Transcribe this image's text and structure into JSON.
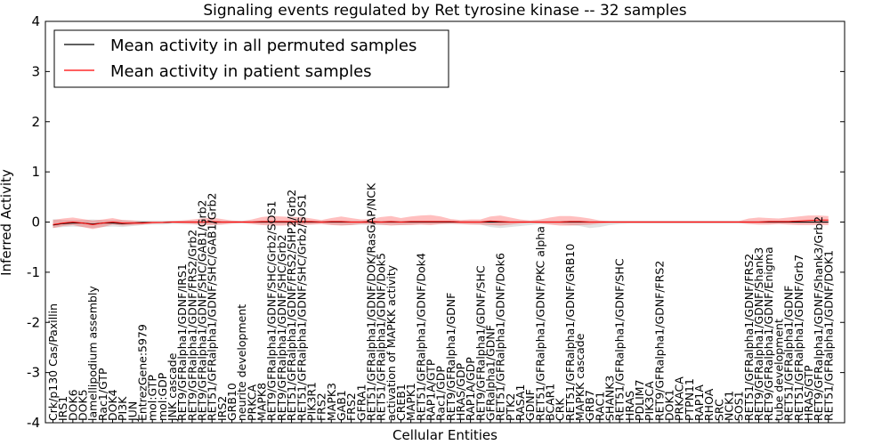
{
  "chart_data": {
    "type": "line",
    "title": "Signaling events regulated by Ret tyrosine kinase -- 32 samples",
    "xlabel": "Cellular Entities",
    "ylabel": "Inferred Activity",
    "ylim": [
      -4,
      4
    ],
    "yticks": [
      -4,
      -3,
      -2,
      -1,
      0,
      1,
      2,
      3,
      4
    ],
    "legend_position": "top-left",
    "categories": [
      "Crk/p130 Cas/Paxillin",
      "IRS1",
      "DOK6",
      "DOK5",
      "lamellipodium assembly",
      "Rac1/GTP",
      "DOK4",
      "PI3K",
      "JUN",
      "EntrezGene:5979",
      "mol:GTP",
      "mol:GDP",
      "JNK cascade",
      "RET9/GFRalpha1/GDNF/IRS1",
      "RET9/GFRalpha1/GDNF/FRS2/Grb2",
      "RET9/GFRalpha1/GDNF/SHC/GAB1/Grb2",
      "RET51/GFRalpha1/GDNF/SHC/GAB1/Grb2",
      "IRS2",
      "GRB10",
      "neurite development",
      "PRKCA",
      "MAPK8",
      "RET9/GFRalpha1/GDNF/SHC/Grb2/SOS1",
      "RET9/GFRalpha1/GDNF/SHC/Grb2",
      "RET51/GFRalpha1/GDNF/FRS2/SHP2/Grb2",
      "RET51/GFRalpha1/GDNF/SHC/Grb2/SOS1",
      "PIK3R1",
      "FRS2",
      "MAPK3",
      "GAB1",
      "FRS2",
      "GFRA1",
      "RET51/GFRalpha1/GDNF/DOK/RasGAP/NCK",
      "RET51/GFRalpha1/GDNF/Dok5",
      "activation of MAPKK activity",
      "CREB1",
      "MAPK1",
      "RET51/GFRalpha1/GDNF/Dok4",
      "RAP1A/GTP",
      "Rac1/GDP",
      "RET9/GFRalpha1/GDNF",
      "HRAS/GDP",
      "RAP1A/GDP",
      "RET9/GFRalpha1/GDNF/SHC",
      "GFRalpha1/GDNF",
      "RET51/GFRalpha1/GDNF/Dok6",
      "PTK2",
      "RASA1",
      "GDNF",
      "RET51/GFRalpha1/GDNF/PKC alpha",
      "BCAR1",
      "CRK",
      "RET51/GFRalpha1/GDNF/GRB10",
      "MAPKK cascade",
      "GRB7",
      "RAC1",
      "SHANK3",
      "RET51/GFRalpha1/GDNF/SHC",
      "HRAS",
      "PDLIM7",
      "PIK3CA",
      "RET9/GFRalpha1/GDNF/FRS2",
      "DOK1",
      "PRKACA",
      "PTPN11",
      "RAP1A",
      "RHOA",
      "SRC",
      "NCK1",
      "SOS1",
      "RET51/GFRalpha1/GDNF/FRS2",
      "RET9/GFRalpha1/GDNF/Shank3",
      "RET9/GFRalpha1/GDNF/Enigma",
      "tube development",
      "RET51/GFRalpha1/GDNF",
      "RET51/GFRalpha1/GDNF/Grb7",
      "HRAS/GTP",
      "RET9/GFRalpha1/GDNF/Shank3/Grb2",
      "RET51/GFRalpha1/GDNF/DOK1"
    ],
    "series": [
      {
        "name": "Mean activity in all permuted samples",
        "color": "#000000",
        "values": [
          -0.06,
          -0.03,
          -0.02,
          -0.02,
          -0.04,
          -0.02,
          -0.02,
          -0.03,
          -0.02,
          -0.01,
          -0.01,
          -0.01,
          0.0,
          0.0,
          0.0,
          0.0,
          0.0,
          0.0,
          0.0,
          0.0,
          0.0,
          0.0,
          0.0,
          0.0,
          0.0,
          0.0,
          0.0,
          0.0,
          0.0,
          0.0,
          0.0,
          0.0,
          0.0,
          0.0,
          0.0,
          0.0,
          0.0,
          0.0,
          0.0,
          0.0,
          0.0,
          0.0,
          0.0,
          0.0,
          0.0,
          0.0,
          0.0,
          0.0,
          0.0,
          0.0,
          0.0,
          0.0,
          0.0,
          0.0,
          0.0,
          0.0,
          0.0,
          0.0,
          0.0,
          0.0,
          0.0,
          0.0,
          0.0,
          0.0,
          0.0,
          0.0,
          0.0,
          0.0,
          0.0,
          0.0,
          0.0,
          0.0,
          0.0,
          0.0,
          0.0,
          0.0,
          0.0,
          0.0,
          0.0
        ],
        "band_lower": [
          -0.12,
          -0.1,
          -0.09,
          -0.1,
          -0.12,
          -0.1,
          -0.09,
          -0.1,
          -0.08,
          -0.06,
          -0.05,
          -0.05,
          -0.04,
          -0.04,
          -0.04,
          -0.04,
          -0.05,
          -0.04,
          -0.03,
          -0.03,
          -0.03,
          -0.04,
          -0.04,
          -0.04,
          -0.04,
          -0.04,
          -0.04,
          -0.03,
          -0.05,
          -0.06,
          -0.06,
          -0.05,
          -0.06,
          -0.06,
          -0.05,
          -0.06,
          -0.05,
          -0.04,
          -0.04,
          -0.04,
          -0.04,
          -0.04,
          -0.04,
          -0.05,
          -0.1,
          -0.12,
          -0.1,
          -0.08,
          -0.06,
          -0.04,
          -0.04,
          -0.04,
          -0.06,
          -0.08,
          -0.12,
          -0.1,
          -0.06,
          -0.04,
          -0.03,
          -0.03,
          -0.03,
          -0.03,
          -0.03,
          -0.03,
          -0.03,
          -0.03,
          -0.03,
          -0.03,
          -0.03,
          -0.03,
          -0.03,
          -0.03,
          -0.03,
          -0.03,
          -0.03,
          -0.03,
          -0.03,
          -0.03,
          -0.03
        ],
        "band_upper": [
          0.06,
          0.04,
          0.04,
          0.04,
          0.05,
          0.04,
          0.04,
          0.04,
          0.03,
          0.03,
          0.03,
          0.03,
          0.03,
          0.03,
          0.03,
          0.03,
          0.03,
          0.03,
          0.03,
          0.03,
          0.03,
          0.03,
          0.03,
          0.03,
          0.03,
          0.03,
          0.03,
          0.03,
          0.03,
          0.03,
          0.03,
          0.03,
          0.03,
          0.03,
          0.03,
          0.03,
          0.03,
          0.03,
          0.03,
          0.03,
          0.03,
          0.03,
          0.03,
          0.03,
          0.03,
          0.03,
          0.03,
          0.03,
          0.03,
          0.03,
          0.03,
          0.03,
          0.03,
          0.03,
          0.03,
          0.03,
          0.03,
          0.03,
          0.03,
          0.03,
          0.03,
          0.03,
          0.03,
          0.03,
          0.03,
          0.03,
          0.03,
          0.03,
          0.03,
          0.03,
          0.03,
          0.03,
          0.03,
          0.03,
          0.03,
          0.03,
          0.03,
          0.03,
          0.03
        ]
      },
      {
        "name": "Mean activity in patient samples",
        "color": "#ff0000",
        "values": [
          -0.05,
          -0.02,
          0.0,
          -0.02,
          -0.05,
          -0.02,
          0.0,
          -0.02,
          -0.02,
          -0.02,
          -0.01,
          -0.01,
          0.0,
          0.0,
          0.0,
          0.0,
          0.01,
          0.0,
          0.0,
          0.0,
          0.0,
          0.01,
          0.01,
          0.01,
          0.01,
          0.01,
          0.01,
          0.0,
          0.01,
          0.01,
          0.0,
          0.0,
          0.01,
          0.0,
          0.01,
          0.0,
          0.01,
          0.01,
          0.01,
          0.01,
          0.01,
          0.0,
          0.0,
          0.0,
          0.02,
          0.01,
          0.0,
          0.0,
          0.0,
          0.0,
          0.0,
          0.0,
          0.01,
          0.01,
          0.0,
          0.0,
          0.0,
          0.0,
          0.0,
          0.0,
          0.0,
          0.0,
          0.0,
          0.0,
          0.0,
          0.0,
          0.0,
          0.0,
          0.0,
          0.0,
          0.0,
          0.0,
          0.01,
          0.01,
          0.01,
          0.02,
          0.03,
          0.04,
          0.04
        ],
        "band_lower": [
          -0.12,
          -0.08,
          -0.06,
          -0.1,
          -0.14,
          -0.1,
          -0.05,
          -0.07,
          -0.06,
          -0.05,
          -0.03,
          -0.02,
          -0.02,
          -0.03,
          -0.04,
          -0.06,
          -0.06,
          -0.05,
          -0.03,
          -0.02,
          -0.04,
          -0.06,
          -0.07,
          -0.07,
          -0.06,
          -0.06,
          -0.05,
          -0.04,
          -0.06,
          -0.07,
          -0.06,
          -0.04,
          -0.04,
          -0.05,
          -0.07,
          -0.06,
          -0.06,
          -0.05,
          -0.06,
          -0.04,
          -0.03,
          -0.04,
          -0.05,
          -0.05,
          -0.06,
          -0.07,
          -0.05,
          -0.03,
          -0.02,
          -0.03,
          -0.05,
          -0.07,
          -0.07,
          -0.06,
          -0.05,
          -0.03,
          -0.02,
          -0.02,
          -0.02,
          -0.02,
          -0.02,
          -0.02,
          -0.02,
          -0.02,
          -0.02,
          -0.02,
          -0.02,
          -0.02,
          -0.02,
          -0.02,
          -0.04,
          -0.05,
          -0.05,
          -0.04,
          -0.05,
          -0.06,
          -0.06,
          -0.06,
          -0.06
        ],
        "band_upper": [
          0.04,
          0.07,
          0.09,
          0.06,
          0.03,
          0.05,
          0.08,
          0.04,
          0.03,
          0.01,
          0.01,
          0.01,
          0.02,
          0.03,
          0.05,
          0.07,
          0.09,
          0.06,
          0.03,
          0.02,
          0.05,
          0.1,
          0.12,
          0.11,
          0.1,
          0.1,
          0.07,
          0.04,
          0.08,
          0.11,
          0.08,
          0.05,
          0.06,
          0.1,
          0.12,
          0.08,
          0.11,
          0.13,
          0.14,
          0.11,
          0.06,
          0.04,
          0.05,
          0.05,
          0.11,
          0.13,
          0.09,
          0.05,
          0.03,
          0.05,
          0.09,
          0.12,
          0.12,
          0.1,
          0.07,
          0.03,
          0.02,
          0.02,
          0.02,
          0.02,
          0.02,
          0.02,
          0.02,
          0.02,
          0.02,
          0.02,
          0.02,
          0.02,
          0.02,
          0.02,
          0.07,
          0.09,
          0.08,
          0.07,
          0.09,
          0.11,
          0.13,
          0.13,
          0.12
        ]
      }
    ]
  }
}
